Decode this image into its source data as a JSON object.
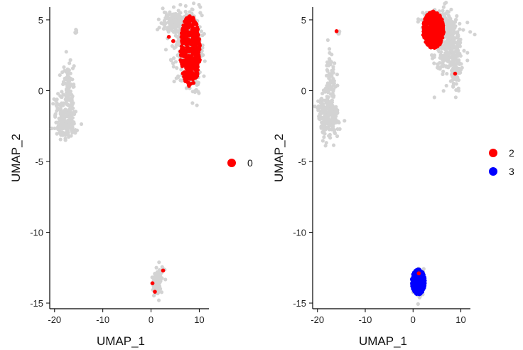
{
  "chart_data": [
    {
      "type": "scatter",
      "xlabel": "UMAP_1",
      "ylabel": "UMAP_2",
      "xlim": [
        -21,
        12
      ],
      "ylim": [
        -15.4,
        5.9
      ],
      "xticks": [
        -20,
        -10,
        0,
        10
      ],
      "yticks": [
        5,
        0,
        -5,
        -10,
        -15
      ],
      "tick_labels_x": [
        "-20",
        "-10",
        "0",
        "10"
      ],
      "tick_labels_y": [
        "5",
        "0",
        "-5",
        "-10",
        "-15"
      ],
      "legend_position": "right",
      "legend": [
        {
          "label": "0",
          "color": "#ff0000"
        }
      ],
      "background_color": "#d3d3d3",
      "highlight_points": [
        {
          "x": 3.7,
          "y": 3.8,
          "group": "0"
        },
        {
          "x": 4.6,
          "y": 3.5,
          "group": "0"
        },
        {
          "x": 2.5,
          "y": -12.7,
          "group": "0"
        },
        {
          "x": 0.3,
          "y": -13.6,
          "group": "0"
        },
        {
          "x": 0.8,
          "y": -14.2,
          "group": "0"
        }
      ],
      "series": [
        {
          "group": "0",
          "color": "#ff0000",
          "cluster": "top-right island",
          "x_range": [
            6.0,
            10.2
          ],
          "y_range": [
            0.3,
            5.3
          ]
        }
      ]
    },
    {
      "type": "scatter",
      "xlabel": "UMAP_1",
      "ylabel": "UMAP_2",
      "xlim": [
        -21,
        12
      ],
      "ylim": [
        -15.4,
        5.9
      ],
      "xticks": [
        -20,
        -10,
        0,
        10
      ],
      "yticks": [
        5,
        0,
        -5,
        -10,
        -15
      ],
      "tick_labels_x": [
        "-20",
        "-10",
        "0",
        "10"
      ],
      "tick_labels_y": [
        "5",
        "0",
        "-5",
        "-10",
        "-15"
      ],
      "legend_position": "right",
      "legend": [
        {
          "label": "2",
          "color": "#ff0000"
        },
        {
          "label": "3",
          "color": "#0000ff"
        }
      ],
      "background_color": "#d3d3d3",
      "highlight_points": [
        {
          "x": -16,
          "y": 4.2,
          "group": "2"
        },
        {
          "x": 8.8,
          "y": 1.2,
          "group": "2"
        },
        {
          "x": 1.2,
          "y": -12.9,
          "group": "2"
        }
      ],
      "series": [
        {
          "group": "2",
          "color": "#ff0000",
          "cluster": "top-right island (left half)",
          "x_range": [
            2.0,
            6.5
          ],
          "y_range": [
            3.0,
            5.6
          ]
        },
        {
          "group": "3",
          "color": "#0000ff",
          "cluster": "bottom island",
          "x_range": [
            -0.3,
            2.5
          ],
          "y_range": [
            -14.4,
            -12.6
          ]
        }
      ]
    }
  ]
}
